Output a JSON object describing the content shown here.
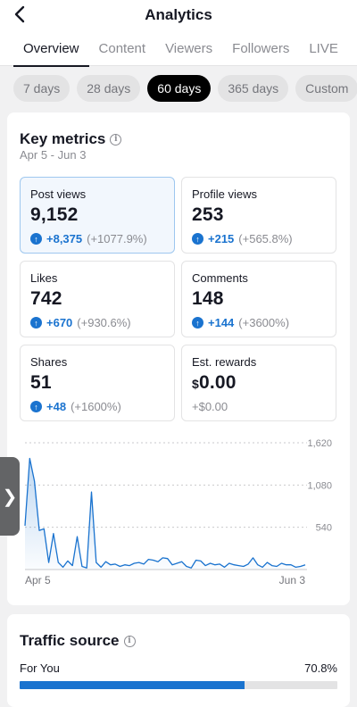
{
  "header": {
    "title": "Analytics",
    "back_icon": "chevron-left-icon"
  },
  "tabs": [
    {
      "label": "Overview",
      "active": true
    },
    {
      "label": "Content",
      "active": false
    },
    {
      "label": "Viewers",
      "active": false
    },
    {
      "label": "Followers",
      "active": false
    },
    {
      "label": "LIVE",
      "active": false
    }
  ],
  "ranges": [
    {
      "label": "7 days",
      "active": false
    },
    {
      "label": "28 days",
      "active": false
    },
    {
      "label": "60 days",
      "active": true
    },
    {
      "label": "365 days",
      "active": false
    },
    {
      "label": "Custom",
      "active": false
    }
  ],
  "key_metrics": {
    "title": "Key metrics",
    "date_range": "Apr 5 - Jun 3",
    "metrics": [
      {
        "label": "Post views",
        "value": "9,152",
        "change": "+8,375",
        "change_pct": "(+1077.9%)",
        "selected": true
      },
      {
        "label": "Profile views",
        "value": "253",
        "change": "+215",
        "change_pct": "(+565.8%)"
      },
      {
        "label": "Likes",
        "value": "742",
        "change": "+670",
        "change_pct": "(+930.6%)"
      },
      {
        "label": "Comments",
        "value": "148",
        "change": "+144",
        "change_pct": "(+3600%)"
      },
      {
        "label": "Shares",
        "value": "51",
        "change": "+48",
        "change_pct": "(+1600%)"
      },
      {
        "label": "Est. rewards",
        "currency": "$",
        "value": "0.00",
        "change_plain": "+$0.00"
      }
    ]
  },
  "chart_data": {
    "type": "line",
    "series": [
      {
        "values": [
          560,
          1420,
          1130,
          500,
          520,
          90,
          460,
          90,
          30,
          110,
          50,
          420,
          40,
          20,
          990,
          90,
          30,
          100,
          60,
          70,
          40,
          60,
          50,
          80,
          90,
          70,
          130,
          120,
          100,
          150,
          140,
          60,
          80,
          100,
          40,
          20,
          120,
          110,
          50,
          80,
          60,
          70,
          30,
          80,
          60,
          50,
          40,
          70,
          150,
          60,
          30,
          90,
          50,
          40,
          80,
          60,
          60,
          30,
          40,
          60
        ]
      }
    ],
    "x_tick_labels": [
      "Apr 5",
      "Jun 3"
    ],
    "y_ticks": [
      "1,620",
      "1,080",
      "540"
    ],
    "y_tick_values": [
      1620,
      1080,
      540
    ],
    "ylim": [
      0,
      1620
    ],
    "grid": "horizontal dashed",
    "color": "#1a73cf"
  },
  "traffic_source": {
    "title": "Traffic source",
    "rows": [
      {
        "label": "For You",
        "value": "70.8%",
        "fraction": 0.708
      }
    ]
  },
  "side_handle": {
    "icon": "chevron-right-icon",
    "glyph": "❯"
  }
}
